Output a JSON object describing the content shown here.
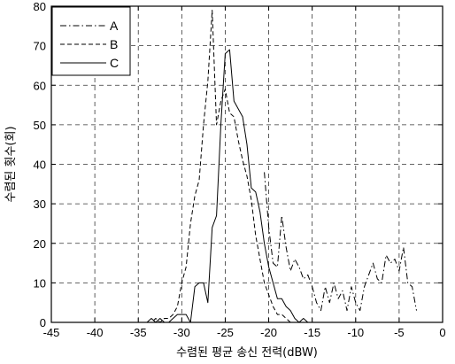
{
  "chart_data": {
    "type": "line",
    "title": "",
    "xlabel": "수렴된 평균 송신 전력(dBW)",
    "ylabel": "수렴된 횟수(회)",
    "xlim": [
      -45,
      0
    ],
    "ylim": [
      0,
      80
    ],
    "xticks": [
      "-45",
      "-40",
      "-35",
      "-30",
      "-25",
      "-20",
      "-15",
      "-10",
      "-5",
      "0"
    ],
    "yticks": [
      "0",
      "10",
      "20",
      "30",
      "40",
      "50",
      "60",
      "70",
      "80"
    ],
    "grid": true,
    "legend_position": "top-left",
    "series": [
      {
        "name": "A",
        "style": "dashdot",
        "x": [
          -20.5,
          -20,
          -19.5,
          -19,
          -18.5,
          -18,
          -17.5,
          -17,
          -16.5,
          -16,
          -15.5,
          -15,
          -14.5,
          -14,
          -13.5,
          -13,
          -12.5,
          -12,
          -11.5,
          -11,
          -10.5,
          -10,
          -9.5,
          -9,
          -8.5,
          -8,
          -7.5,
          -7,
          -6.5,
          -6,
          -5.5,
          -5,
          -4.5,
          -4,
          -3.5,
          -3
        ],
        "values": [
          38,
          24,
          15,
          14,
          27,
          19,
          13,
          16,
          14,
          11,
          12,
          9,
          5,
          3,
          9,
          5,
          10,
          6,
          8,
          3,
          9,
          5,
          3,
          9,
          12,
          15,
          11,
          10,
          17,
          15,
          16,
          13,
          19,
          10,
          9,
          3
        ]
      },
      {
        "name": "B",
        "style": "dashed",
        "x": [
          -34,
          -33.5,
          -33,
          -32.5,
          -32,
          -31.5,
          -31,
          -30.5,
          -30,
          -29.5,
          -29,
          -28.5,
          -28,
          -27.5,
          -27,
          -26.5,
          -26,
          -25.5,
          -25,
          -24.5,
          -24,
          -23.5,
          -23,
          -22.5,
          -22,
          -21.5,
          -21,
          -20.5,
          -20,
          -19.5,
          -19,
          -18.5,
          -18,
          -17.5,
          -17
        ],
        "values": [
          0,
          0,
          1,
          0,
          1,
          1,
          2,
          4,
          10,
          14,
          25,
          32,
          36,
          50,
          61,
          79,
          50,
          56,
          59,
          53,
          52,
          46,
          41,
          37,
          31,
          22,
          16,
          10,
          7,
          4,
          2,
          2,
          1,
          0,
          0
        ]
      },
      {
        "name": "C",
        "style": "solid",
        "x": [
          -34,
          -33.5,
          -33,
          -32.5,
          -32,
          -31.5,
          -31,
          -30.5,
          -30,
          -29.5,
          -29,
          -28.5,
          -28,
          -27.5,
          -27,
          -26.5,
          -26,
          -25.5,
          -25,
          -24.5,
          -24,
          -23.5,
          -23,
          -22.5,
          -22,
          -21.5,
          -21,
          -20.5,
          -20,
          -19.5,
          -19,
          -18.5,
          -18,
          -17.5,
          -17,
          -16.5,
          -16,
          -15.5,
          -15
        ],
        "values": [
          0,
          1,
          0,
          1,
          0,
          0,
          1,
          2,
          2,
          2,
          0,
          9,
          10,
          10,
          5,
          24,
          27,
          50,
          68,
          69,
          56,
          54,
          52,
          45,
          34,
          33,
          28,
          20,
          14,
          10,
          6,
          6,
          4,
          3,
          1,
          0,
          1,
          0,
          0
        ]
      }
    ]
  }
}
